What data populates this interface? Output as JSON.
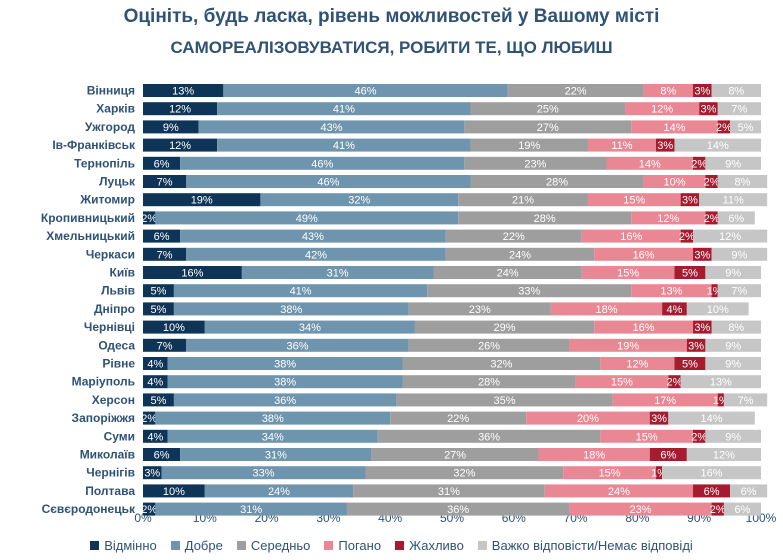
{
  "header": {
    "title": "Оцініть, будь ласка, рівень можливостей у Вашому місті",
    "subtitle": "САМОРЕАЛІЗОВУВАТИСЯ, РОБИТИ ТЕ, ЩО ЛЮБИШ"
  },
  "chart_data": {
    "type": "bar",
    "orientation": "horizontal",
    "stacked": "percent",
    "title": "Оцініть, будь ласка, рівень можливостей у Вашому місті",
    "subtitle": "САМОРЕАЛІЗОВУВАТИСЯ, РОБИТИ ТЕ, ЩО ЛЮБИШ",
    "xlim": [
      0,
      100
    ],
    "x_ticks": [
      "0%",
      "10%",
      "20%",
      "30%",
      "40%",
      "50%",
      "60%",
      "70%",
      "80%",
      "90%",
      "100%"
    ],
    "grid": false,
    "legend_position": "bottom",
    "categories": [
      "Вінниця",
      "Харків",
      "Ужгород",
      "Ів-Франківськ",
      "Тернопіль",
      "Луцьк",
      "Житомир",
      "Кропивницький",
      "Хмельницький",
      "Черкаси",
      "Київ",
      "Львів",
      "Дніпро",
      "Чернівці",
      "Одеса",
      "Рівне",
      "Маріуполь",
      "Херсон",
      "Запоріжжя",
      "Суми",
      "Миколаїв",
      "Чернігів",
      "Полтава",
      "Сєвєродонецьк"
    ],
    "series": [
      {
        "name": "Відмінно",
        "color": "#0e3557",
        "text_color": "#ffffff",
        "values": [
          13,
          12,
          9,
          12,
          6,
          7,
          19,
          2,
          6,
          7,
          16,
          5,
          5,
          10,
          7,
          4,
          4,
          5,
          2,
          4,
          6,
          3,
          10,
          2
        ]
      },
      {
        "name": "Добре",
        "color": "#6e95ad",
        "text_color": "#ffffff",
        "values": [
          46,
          41,
          43,
          41,
          46,
          46,
          32,
          49,
          43,
          42,
          31,
          41,
          38,
          34,
          36,
          38,
          38,
          36,
          38,
          34,
          31,
          33,
          24,
          31
        ]
      },
      {
        "name": "Середньо",
        "color": "#9e9e9e",
        "text_color": "#ffffff",
        "values": [
          22,
          25,
          27,
          19,
          23,
          28,
          21,
          28,
          22,
          24,
          24,
          33,
          23,
          29,
          26,
          32,
          28,
          35,
          22,
          36,
          27,
          32,
          31,
          36
        ]
      },
      {
        "name": "Погано",
        "color": "#e98894",
        "text_color": "#ffffff",
        "values": [
          8,
          12,
          14,
          11,
          14,
          10,
          15,
          12,
          16,
          16,
          15,
          13,
          18,
          16,
          19,
          12,
          15,
          17,
          20,
          15,
          18,
          15,
          24,
          23
        ]
      },
      {
        "name": "Жахливо",
        "color": "#a51c30",
        "text_color": "#ffffff",
        "values": [
          3,
          3,
          2,
          3,
          2,
          2,
          3,
          2,
          2,
          3,
          5,
          1,
          4,
          3,
          3,
          5,
          2,
          1,
          3,
          2,
          6,
          1,
          6,
          2
        ]
      },
      {
        "name": "Важко відповісти/Немає відповіді",
        "color": "#c6c6c6",
        "text_color": "#ffffff",
        "values": [
          8,
          7,
          5,
          14,
          9,
          8,
          11,
          6,
          12,
          9,
          9,
          7,
          10,
          8,
          9,
          9,
          13,
          7,
          14,
          9,
          12,
          16,
          6,
          6
        ]
      }
    ]
  }
}
